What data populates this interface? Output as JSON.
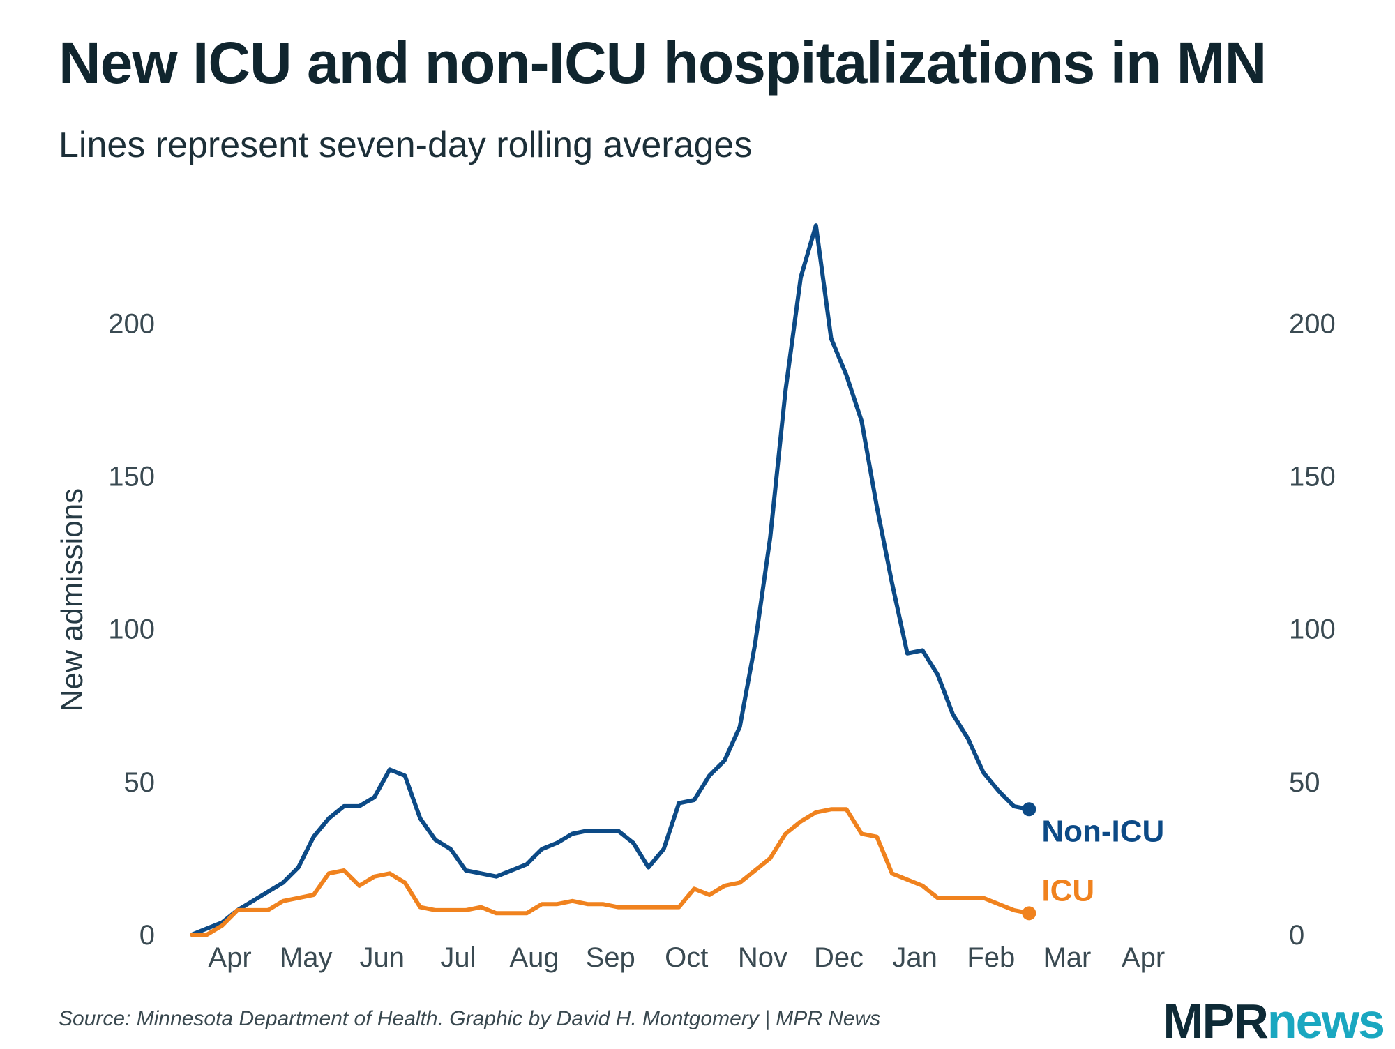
{
  "title": "New ICU and non-ICU hospitalizations in MN",
  "subtitle": "Lines represent seven-day rolling averages",
  "source": "Source: Minnesota Department of Health. Graphic by David H. Montgomery | MPR News",
  "logo": {
    "mpr": "MPR",
    "news": "news"
  },
  "colors": {
    "non_icu": "#0c4a86",
    "icu": "#f0821e",
    "text": "#132a33"
  },
  "chart_data": {
    "type": "line",
    "title": "New ICU and non-ICU hospitalizations in MN",
    "ylabel": "New admissions",
    "xlabel": "",
    "ylim": [
      0,
      235
    ],
    "yticks": [
      0,
      50,
      100,
      150,
      200
    ],
    "xlim": [
      0,
      14.25
    ],
    "month_ticks": [
      {
        "label": "Apr",
        "pos": 0.5
      },
      {
        "label": "May",
        "pos": 1.5
      },
      {
        "label": "Jun",
        "pos": 2.5
      },
      {
        "label": "Jul",
        "pos": 3.5
      },
      {
        "label": "Aug",
        "pos": 4.5
      },
      {
        "label": "Sep",
        "pos": 5.5
      },
      {
        "label": "Oct",
        "pos": 6.5
      },
      {
        "label": "Nov",
        "pos": 7.5
      },
      {
        "label": "Dec",
        "pos": 8.5
      },
      {
        "label": "Jan",
        "pos": 9.5
      },
      {
        "label": "Feb",
        "pos": 10.5
      },
      {
        "label": "Mar",
        "pos": 11.5
      },
      {
        "label": "Apr",
        "pos": 12.5
      }
    ],
    "series": [
      {
        "name": "Non-ICU",
        "label": "Non-ICU",
        "x": [
          0,
          0.2,
          0.4,
          0.6,
          0.8,
          1.0,
          1.2,
          1.4,
          1.6,
          1.8,
          2.0,
          2.2,
          2.4,
          2.6,
          2.8,
          3.0,
          3.2,
          3.4,
          3.6,
          3.8,
          4.0,
          4.2,
          4.4,
          4.6,
          4.8,
          5.0,
          5.2,
          5.4,
          5.6,
          5.8,
          6.0,
          6.2,
          6.4,
          6.6,
          6.8,
          7.0,
          7.2,
          7.4,
          7.6,
          7.8,
          8.0,
          8.2,
          8.4,
          8.6,
          8.8,
          9.0,
          9.2,
          9.4,
          9.6,
          9.8,
          10.0,
          10.2,
          10.4,
          10.6,
          10.8,
          11.0
        ],
        "values": [
          0,
          2,
          4,
          8,
          11,
          14,
          17,
          22,
          32,
          38,
          42,
          42,
          45,
          54,
          52,
          38,
          31,
          28,
          21,
          20,
          19,
          21,
          23,
          28,
          30,
          33,
          34,
          34,
          34,
          30,
          22,
          28,
          43,
          44,
          52,
          57,
          68,
          95,
          130,
          178,
          215,
          232,
          195,
          183,
          168,
          140,
          115,
          92,
          93,
          85,
          72,
          64,
          53,
          47,
          42,
          41
        ]
      },
      {
        "name": "ICU",
        "label": "ICU",
        "x": [
          0,
          0.2,
          0.4,
          0.6,
          0.8,
          1.0,
          1.2,
          1.4,
          1.6,
          1.8,
          2.0,
          2.2,
          2.4,
          2.6,
          2.8,
          3.0,
          3.2,
          3.4,
          3.6,
          3.8,
          4.0,
          4.2,
          4.4,
          4.6,
          4.8,
          5.0,
          5.2,
          5.4,
          5.6,
          5.8,
          6.0,
          6.2,
          6.4,
          6.6,
          6.8,
          7.0,
          7.2,
          7.4,
          7.6,
          7.8,
          8.0,
          8.2,
          8.4,
          8.6,
          8.8,
          9.0,
          9.2,
          9.4,
          9.6,
          9.8,
          10.0,
          10.2,
          10.4,
          10.6,
          10.8,
          11.0
        ],
        "values": [
          0,
          0,
          3,
          8,
          8,
          8,
          11,
          12,
          13,
          20,
          21,
          16,
          19,
          20,
          17,
          9,
          8,
          8,
          8,
          9,
          7,
          7,
          7,
          10,
          10,
          11,
          10,
          10,
          9,
          9,
          9,
          9,
          9,
          15,
          13,
          16,
          17,
          21,
          25,
          33,
          37,
          40,
          41,
          41,
          33,
          32,
          20,
          18,
          16,
          12,
          12,
          12,
          12,
          10,
          8,
          7
        ]
      }
    ]
  }
}
